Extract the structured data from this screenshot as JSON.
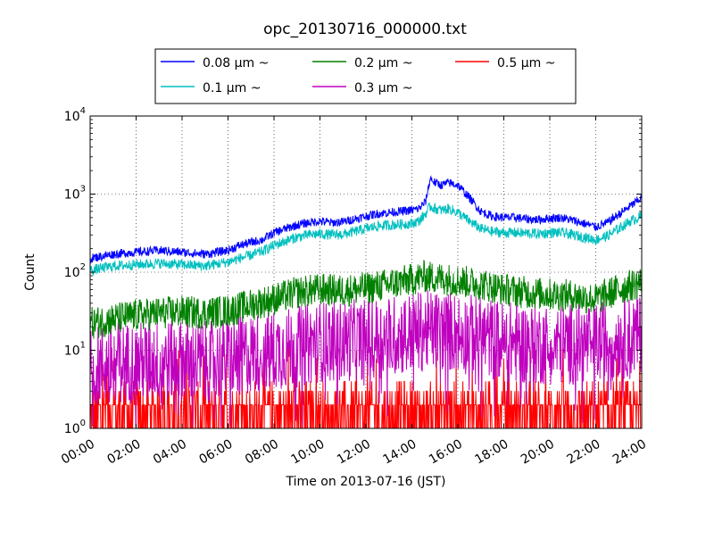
{
  "chart_data": {
    "type": "line",
    "title": "opc_20130716_000000.txt",
    "xlabel": "Time on 2013-07-16 (JST)",
    "ylabel": "Count",
    "y_scale": "log",
    "ylim": [
      1,
      10000
    ],
    "x_unit": "hour",
    "xlim": [
      0,
      24
    ],
    "x_ticks": [
      {
        "value": 0,
        "label": "00:00"
      },
      {
        "value": 2,
        "label": "02:00"
      },
      {
        "value": 4,
        "label": "04:00"
      },
      {
        "value": 6,
        "label": "06:00"
      },
      {
        "value": 8,
        "label": "08:00"
      },
      {
        "value": 10,
        "label": "10:00"
      },
      {
        "value": 12,
        "label": "12:00"
      },
      {
        "value": 14,
        "label": "14:00"
      },
      {
        "value": 16,
        "label": "16:00"
      },
      {
        "value": 18,
        "label": "18:00"
      },
      {
        "value": 20,
        "label": "20:00"
      },
      {
        "value": 22,
        "label": "22:00"
      },
      {
        "value": 24,
        "label": "24:00"
      }
    ],
    "y_ticks": [
      {
        "value": 1,
        "base": "10",
        "exp": "0"
      },
      {
        "value": 10,
        "base": "10",
        "exp": "1"
      },
      {
        "value": 100,
        "base": "10",
        "exp": "2"
      },
      {
        "value": 1000,
        "base": "10",
        "exp": "3"
      },
      {
        "value": 10000,
        "base": "10",
        "exp": "4"
      }
    ],
    "grid": true,
    "legend_position": "top, outside plot",
    "series": [
      {
        "name": "0.08 μm ~",
        "color": "#0000ff",
        "x": [
          0,
          1,
          2,
          3,
          4,
          5,
          6,
          6.5,
          7,
          7.5,
          8,
          8.5,
          9,
          9.5,
          10,
          10.5,
          11,
          11.5,
          12,
          12.5,
          13,
          13.5,
          14,
          14.3,
          14.6,
          14.8,
          15,
          15.3,
          15.6,
          16,
          16.5,
          17,
          17.5,
          18,
          18.5,
          19,
          19.5,
          20,
          20.5,
          21,
          21.5,
          22,
          22.5,
          23,
          23.5,
          24
        ],
        "y": [
          150,
          170,
          180,
          190,
          180,
          170,
          190,
          220,
          240,
          260,
          320,
          360,
          400,
          430,
          450,
          430,
          440,
          480,
          520,
          560,
          580,
          600,
          620,
          650,
          800,
          1600,
          1400,
          1300,
          1400,
          1300,
          900,
          600,
          520,
          500,
          500,
          480,
          470,
          490,
          500,
          460,
          420,
          380,
          430,
          550,
          700,
          900
        ]
      },
      {
        "name": "0.1 μm ~",
        "color": "#00bfbf",
        "x": [
          0,
          1,
          2,
          3,
          4,
          5,
          6,
          6.5,
          7,
          7.5,
          8,
          8.5,
          9,
          9.5,
          10,
          10.5,
          11,
          11.5,
          12,
          12.5,
          13,
          13.5,
          14,
          14.3,
          14.6,
          14.8,
          15,
          15.3,
          15.6,
          16,
          16.5,
          17,
          17.5,
          18,
          18.5,
          19,
          19.5,
          20,
          20.5,
          21,
          21.5,
          22,
          22.5,
          23,
          23.5,
          24
        ],
        "y": [
          105,
          120,
          125,
          130,
          125,
          120,
          135,
          150,
          165,
          185,
          220,
          250,
          280,
          300,
          310,
          300,
          305,
          330,
          360,
          390,
          400,
          410,
          420,
          450,
          560,
          700,
          650,
          620,
          650,
          580,
          450,
          360,
          330,
          320,
          320,
          315,
          310,
          320,
          320,
          300,
          280,
          260,
          290,
          360,
          450,
          520
        ]
      },
      {
        "name": "0.2 μm ~",
        "color": "#008000",
        "x": [
          0,
          1,
          2,
          3,
          4,
          5,
          6,
          7,
          8,
          9,
          10,
          11,
          12,
          13,
          14,
          14.5,
          15,
          16,
          17,
          18,
          19,
          20,
          21,
          22,
          23,
          24
        ],
        "y": [
          22,
          25,
          28,
          30,
          31,
          30,
          32,
          38,
          45,
          55,
          60,
          58,
          62,
          70,
          80,
          88,
          85,
          78,
          70,
          60,
          55,
          52,
          50,
          45,
          60,
          75
        ]
      },
      {
        "name": "0.3 μm ~",
        "color": "#bf00bf",
        "x": [
          0,
          1,
          2,
          3,
          4,
          5,
          6,
          7,
          8,
          9,
          10,
          11,
          12,
          13,
          14,
          15,
          16,
          17,
          18,
          19,
          20,
          21,
          22,
          23,
          24
        ],
        "y": [
          6,
          7,
          7,
          7.5,
          7.5,
          7,
          8,
          9,
          10,
          11,
          13,
          13,
          14,
          15,
          17,
          18,
          17,
          15,
          13,
          12,
          12,
          12,
          12,
          14,
          16
        ]
      },
      {
        "name": "0.5 μm ~",
        "color": "#ff0000",
        "x": [
          0,
          2,
          4,
          6,
          8,
          10,
          12,
          14,
          16,
          18,
          20,
          22,
          24
        ],
        "y": [
          1.5,
          1.5,
          1.5,
          1.5,
          1.6,
          1.7,
          1.8,
          2,
          2,
          1.9,
          1.8,
          1.8,
          2
        ]
      }
    ]
  }
}
